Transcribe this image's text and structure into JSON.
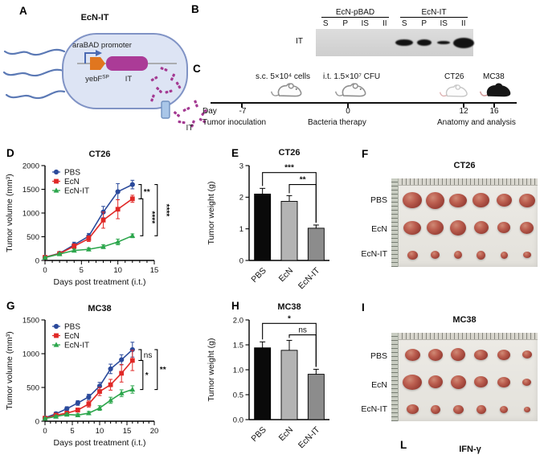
{
  "colors": {
    "pbs": "#2b4a9b",
    "ecn": "#e02826",
    "ecnit": "#2ca64c",
    "cell_fill": "#dde4f4",
    "cell_border": "#8093c5",
    "flagella": "#5b79b5",
    "promoter_arrow": "#4a69b2",
    "yebf_block": "#e0761f",
    "it_bar": "#ab3b97",
    "fragment": "#a43a92",
    "channel_fill": "#a9c6e8",
    "channel_border": "#7091c0"
  },
  "panel_a": {
    "label": "A",
    "title": "EcN-IT",
    "promoter": "araBAD promoter",
    "gene1": "yebF",
    "gene1_sup": "SP",
    "gene2": "IT",
    "secreted": "IT"
  },
  "panel_b": {
    "label": "B",
    "row_label": "IT",
    "groups": [
      {
        "name": "EcN-pBAD",
        "lanes": [
          "S",
          "P",
          "IS",
          "II"
        ],
        "bands": [
          [
            0,
            0
          ],
          [
            0,
            0
          ],
          [
            0,
            0
          ],
          [
            0,
            0
          ]
        ]
      },
      {
        "name": "EcN-IT",
        "lanes": [
          "S",
          "P",
          "IS",
          "II"
        ],
        "bands": [
          [
            22,
            8
          ],
          [
            18,
            8
          ],
          [
            16,
            4.5
          ],
          [
            26,
            13
          ]
        ]
      }
    ]
  },
  "panel_c": {
    "label": "C",
    "injection1": "s.c. 5×10⁴ cells",
    "injection2": "i.t. 1.5×10⁷ CFU",
    "model1": "CT26",
    "model2": "MC38",
    "day_label": "Day",
    "days": [
      "-7",
      "0",
      "12",
      "16"
    ],
    "caption1": "Tumor inoculation",
    "caption2": "Bacteria therapy",
    "caption3": "Anatomy and analysis"
  },
  "chart_data": [
    {
      "panel_label": "D",
      "type": "line",
      "title": "CT26",
      "xlabel": "Days post treatment (i.t.)",
      "ylabel": "Tumor volume (mm³)",
      "xlim": [
        0,
        15
      ],
      "ylim": [
        0,
        2000
      ],
      "xticks": [
        0,
        5,
        10,
        15
      ],
      "xminor_step": 1,
      "yticks": [
        0,
        500,
        1000,
        1500,
        2000
      ],
      "x": [
        0,
        2,
        4,
        6,
        8,
        10,
        12
      ],
      "legend_position": "top-left-inside",
      "series": [
        {
          "name": "PBS",
          "marker": "circle",
          "color": "#2b4a9b",
          "values": [
            70,
            150,
            330,
            510,
            1020,
            1450,
            1600
          ],
          "errors": [
            25,
            30,
            55,
            60,
            120,
            170,
            90
          ]
        },
        {
          "name": "EcN",
          "marker": "square",
          "color": "#e02826",
          "values": [
            65,
            145,
            300,
            460,
            850,
            1080,
            1300
          ],
          "errors": [
            20,
            30,
            50,
            60,
            170,
            200,
            75
          ]
        },
        {
          "name": "EcN-IT",
          "marker": "triangle",
          "color": "#2ca64c",
          "values": [
            60,
            135,
            210,
            235,
            290,
            390,
            520
          ],
          "errors": [
            15,
            25,
            30,
            30,
            40,
            60,
            40
          ]
        }
      ],
      "sig": [
        {
          "label": "**",
          "from": 0,
          "to": 1,
          "outer": false
        },
        {
          "label": "****",
          "from": 1,
          "to": 2,
          "outer": false
        },
        {
          "label": "****",
          "from": 0,
          "to": 2,
          "outer": true
        }
      ]
    },
    {
      "panel_label": "E",
      "type": "bar",
      "title": "CT26",
      "ylabel": "Tumor weight (g)",
      "ylim": [
        0,
        3
      ],
      "yticks": [
        0,
        1,
        2,
        3
      ],
      "yticklabels": [
        "0",
        "1",
        "2",
        "3"
      ],
      "categories": [
        "PBS",
        "EcN",
        "EcN-IT"
      ],
      "values": [
        2.1,
        1.87,
        1.02
      ],
      "errors": [
        0.18,
        0.18,
        0.1
      ],
      "colors": [
        "#0a0a0a",
        "#b4b4b4",
        "#8c8c8c"
      ],
      "sig": [
        {
          "label": "***",
          "from": 0,
          "to": 2,
          "y": 2.78
        },
        {
          "label": "**",
          "from": 1,
          "to": 2,
          "y": 2.4
        }
      ]
    },
    {
      "panel_label": "G",
      "type": "line",
      "title": "MC38",
      "xlabel": "Days post treatment (i.t.)",
      "ylabel": "Tumor volume (mm³)",
      "xlim": [
        0,
        20
      ],
      "ylim": [
        0,
        1500
      ],
      "xticks": [
        0,
        5,
        10,
        15,
        20
      ],
      "xminor_step": 1,
      "yticks": [
        0,
        500,
        1000,
        1500
      ],
      "x": [
        0,
        2,
        4,
        6,
        8,
        10,
        12,
        14,
        16
      ],
      "legend_position": "top-left-inside",
      "series": [
        {
          "name": "PBS",
          "marker": "circle",
          "color": "#2b4a9b",
          "values": [
            50,
            110,
            185,
            270,
            360,
            520,
            775,
            910,
            1060
          ],
          "errors": [
            15,
            25,
            30,
            35,
            40,
            55,
            70,
            75,
            110
          ]
        },
        {
          "name": "EcN",
          "marker": "square",
          "color": "#e02826",
          "values": [
            45,
            90,
            120,
            165,
            255,
            440,
            540,
            710,
            900
          ],
          "errors": [
            15,
            20,
            25,
            30,
            45,
            60,
            80,
            130,
            150
          ]
        },
        {
          "name": "EcN-IT",
          "marker": "triangle",
          "color": "#2ca64c",
          "values": [
            40,
            70,
            100,
            90,
            120,
            195,
            310,
            415,
            470
          ],
          "errors": [
            10,
            15,
            20,
            20,
            25,
            35,
            45,
            50,
            55
          ]
        }
      ],
      "sig": [
        {
          "label": "ns",
          "from": 0,
          "to": 1,
          "outer": false
        },
        {
          "label": "*",
          "from": 1,
          "to": 2,
          "outer": false
        },
        {
          "label": "**",
          "from": 0,
          "to": 2,
          "outer": true
        }
      ]
    },
    {
      "panel_label": "H",
      "type": "bar",
      "title": "MC38",
      "ylabel": "Tumor weight (g)",
      "ylim": [
        0,
        2
      ],
      "yticks": [
        0,
        0.5,
        1,
        1.5,
        2
      ],
      "yticklabels": [
        "0.0",
        "0.5",
        "1.0",
        "1.5",
        "2.0"
      ],
      "categories": [
        "PBS",
        "EcN",
        "EcN-IT"
      ],
      "values": [
        1.44,
        1.39,
        0.91
      ],
      "errors": [
        0.12,
        0.2,
        0.1
      ],
      "colors": [
        "#0a0a0a",
        "#b4b4b4",
        "#8c8c8c"
      ],
      "sig": [
        {
          "label": "*",
          "from": 0,
          "to": 2,
          "y": 1.93
        },
        {
          "label": "ns",
          "from": 1,
          "to": 2,
          "y": 1.7
        }
      ]
    }
  ],
  "panel_f": {
    "label": "F",
    "title": "CT26",
    "rows": [
      {
        "name": "PBS",
        "tumors": [
          [
            24,
            20
          ],
          [
            23,
            21
          ],
          [
            22,
            17
          ],
          [
            21,
            18
          ],
          [
            19,
            16
          ],
          [
            20,
            17
          ]
        ]
      },
      {
        "name": "EcN",
        "tumors": [
          [
            22,
            17
          ],
          [
            21,
            18
          ],
          [
            20,
            19
          ],
          [
            18,
            16
          ],
          [
            16,
            14
          ],
          [
            17,
            15
          ]
        ]
      },
      {
        "name": "EcN-IT",
        "tumors": [
          [
            13,
            11
          ],
          [
            11,
            10
          ],
          [
            10,
            10
          ],
          [
            11,
            11
          ],
          [
            9,
            9
          ],
          [
            10,
            8
          ]
        ]
      }
    ]
  },
  "panel_i": {
    "label": "I",
    "title": "MC38",
    "rows": [
      {
        "name": "PBS",
        "tumors": [
          [
            19,
            15
          ],
          [
            18,
            15
          ],
          [
            18,
            16
          ],
          [
            17,
            13
          ],
          [
            16,
            13
          ],
          [
            12,
            10
          ]
        ]
      },
      {
        "name": "EcN",
        "tumors": [
          [
            24,
            19
          ],
          [
            18,
            16
          ],
          [
            19,
            17
          ],
          [
            17,
            14
          ],
          [
            16,
            13
          ],
          [
            11,
            9
          ]
        ]
      },
      {
        "name": "EcN-IT",
        "tumors": [
          [
            15,
            12
          ],
          [
            12,
            11
          ],
          [
            13,
            11
          ],
          [
            12,
            11
          ],
          [
            10,
            9
          ],
          [
            8,
            7
          ]
        ]
      }
    ]
  },
  "panel_l": {
    "label": "L",
    "title": "IFN-γ"
  }
}
